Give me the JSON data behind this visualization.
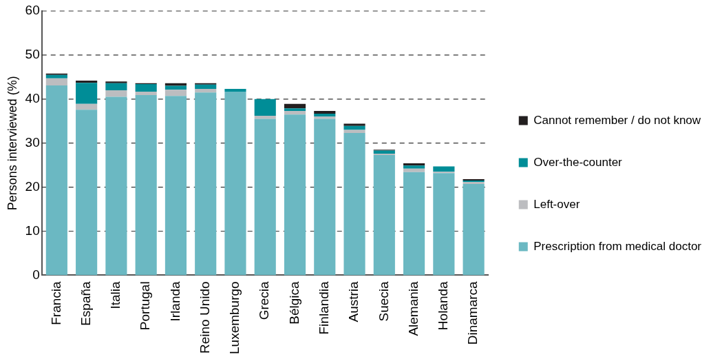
{
  "chart_data": {
    "type": "bar",
    "stacked": true,
    "ylabel": "Persons interviewed (%)",
    "categories": [
      "Francia",
      "España",
      "Italia",
      "Portugal",
      "Irlanda",
      "Reino Unido",
      "Luxemburgo",
      "Grecia",
      "Bélgica",
      "Finlandia",
      "Austria",
      "Suecia",
      "Alemania",
      "Holanda",
      "Dinamarca"
    ],
    "series": [
      {
        "name": "Prescription from medical doctor",
        "color": "#6bb8c2",
        "values": [
          43.1,
          37.6,
          40.5,
          40.9,
          40.7,
          41.5,
          41.7,
          35.5,
          36.5,
          35.5,
          32.3,
          27.3,
          23.4,
          23.2,
          20.7
        ]
      },
      {
        "name": "Left-over",
        "color": "#bcbdc0",
        "values": [
          1.6,
          1.3,
          1.5,
          0.8,
          1.4,
          0.8,
          0,
          0.7,
          0.8,
          0.5,
          0.7,
          0.3,
          0.8,
          0.3,
          0.5
        ]
      },
      {
        "name": "Over-the-counter",
        "color": "#008d97",
        "values": [
          0.8,
          4.8,
          1.6,
          1.7,
          0.9,
          1.0,
          0.6,
          3.8,
          0.6,
          0.7,
          0.9,
          0.7,
          0.7,
          1.2,
          0.3
        ]
      },
      {
        "name": "Cannot remember / do not know",
        "color": "#231f20",
        "values": [
          0.3,
          0.5,
          0.4,
          0.2,
          0.6,
          0.3,
          0,
          0,
          1.0,
          0.6,
          0.5,
          0.2,
          0.5,
          0,
          0.3
        ]
      }
    ],
    "ylim": [
      0,
      60
    ],
    "yticks": [
      0,
      10,
      20,
      30,
      40,
      50,
      60
    ],
    "grid": "y",
    "legend": "right"
  }
}
